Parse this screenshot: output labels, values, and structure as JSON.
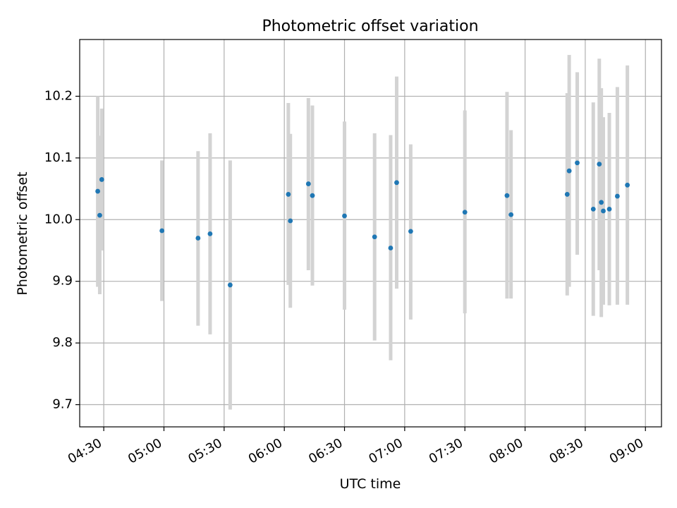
{
  "chart_data": {
    "type": "scatter",
    "title": "Photometric offset variation",
    "xlabel": "UTC time",
    "ylabel": "Photometric offset",
    "x_axis_kind": "time",
    "xlim": [
      "04:18",
      "09:08"
    ],
    "ylim": [
      9.664,
      10.292
    ],
    "x_ticks": [
      "04:30",
      "05:00",
      "05:30",
      "06:00",
      "06:30",
      "07:00",
      "07:30",
      "08:00",
      "08:30",
      "09:00"
    ],
    "y_ticks": [
      9.7,
      9.8,
      9.9,
      10.0,
      10.1,
      10.2
    ],
    "y_tick_labels": [
      "9.7",
      "9.8",
      "9.9",
      "10.0",
      "10.1",
      "10.2"
    ],
    "grid": true,
    "colors": {
      "point": "#1f77b4",
      "errorbar": "#d3d3d3",
      "grid": "#b0b0b0"
    },
    "points": [
      {
        "x": "04:27",
        "y": 10.046,
        "ylow": 9.891,
        "yhigh": 10.2
      },
      {
        "x": "04:28",
        "y": 10.007,
        "ylow": 9.879,
        "yhigh": 10.136
      },
      {
        "x": "04:29",
        "y": 10.065,
        "ylow": 9.95,
        "yhigh": 10.18
      },
      {
        "x": "04:59",
        "y": 9.982,
        "ylow": 9.868,
        "yhigh": 10.096
      },
      {
        "x": "05:17",
        "y": 9.97,
        "ylow": 9.828,
        "yhigh": 10.111
      },
      {
        "x": "05:23",
        "y": 9.977,
        "ylow": 9.814,
        "yhigh": 10.14
      },
      {
        "x": "05:33",
        "y": 9.894,
        "ylow": 9.692,
        "yhigh": 10.096
      },
      {
        "x": "06:02",
        "y": 10.041,
        "ylow": 9.894,
        "yhigh": 10.189
      },
      {
        "x": "06:03",
        "y": 9.998,
        "ylow": 9.857,
        "yhigh": 10.139
      },
      {
        "x": "06:12",
        "y": 10.058,
        "ylow": 9.918,
        "yhigh": 10.197
      },
      {
        "x": "06:14",
        "y": 10.039,
        "ylow": 9.893,
        "yhigh": 10.185
      },
      {
        "x": "06:30",
        "y": 10.006,
        "ylow": 9.854,
        "yhigh": 10.159
      },
      {
        "x": "06:45",
        "y": 9.972,
        "ylow": 9.804,
        "yhigh": 10.14
      },
      {
        "x": "06:53",
        "y": 9.954,
        "ylow": 9.772,
        "yhigh": 10.137
      },
      {
        "x": "06:56",
        "y": 10.06,
        "ylow": 9.888,
        "yhigh": 10.232
      },
      {
        "x": "07:03",
        "y": 9.981,
        "ylow": 9.838,
        "yhigh": 10.122
      },
      {
        "x": "07:30",
        "y": 10.012,
        "ylow": 9.848,
        "yhigh": 10.177
      },
      {
        "x": "07:51",
        "y": 10.039,
        "ylow": 9.872,
        "yhigh": 10.207
      },
      {
        "x": "07:53",
        "y": 10.008,
        "ylow": 9.872,
        "yhigh": 10.145
      },
      {
        "x": "08:21",
        "y": 10.041,
        "ylow": 9.877,
        "yhigh": 10.205
      },
      {
        "x": "08:22",
        "y": 10.079,
        "ylow": 9.891,
        "yhigh": 10.267
      },
      {
        "x": "08:26",
        "y": 10.092,
        "ylow": 9.943,
        "yhigh": 10.239
      },
      {
        "x": "08:34",
        "y": 10.017,
        "ylow": 9.844,
        "yhigh": 10.19
      },
      {
        "x": "08:37",
        "y": 10.09,
        "ylow": 9.918,
        "yhigh": 10.261
      },
      {
        "x": "08:38",
        "y": 10.028,
        "ylow": 9.842,
        "yhigh": 10.213
      },
      {
        "x": "08:39",
        "y": 10.014,
        "ylow": 9.862,
        "yhigh": 10.166
      },
      {
        "x": "08:42",
        "y": 10.017,
        "ylow": 9.861,
        "yhigh": 10.173
      },
      {
        "x": "08:46",
        "y": 10.038,
        "ylow": 9.862,
        "yhigh": 10.215
      },
      {
        "x": "08:51",
        "y": 10.056,
        "ylow": 9.862,
        "yhigh": 10.25
      }
    ]
  }
}
